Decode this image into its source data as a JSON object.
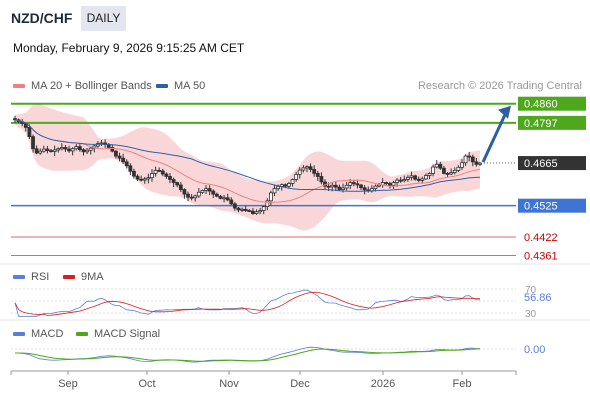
{
  "header": {
    "pair": "NZD/CHF",
    "timeframe": "DAILY",
    "timestamp": "Monday, February 9, 2026 9:15:25 AM CET"
  },
  "legend": {
    "ma20_label": "MA 20 + Bollinger Bands",
    "ma50_label": "MA 50",
    "credit": "Research © 2026 Trading Central",
    "rsi_label": "RSI",
    "rsi_ma_label": "9MA",
    "macd_label": "MACD",
    "macd_signal_label": "MACD Signal"
  },
  "colors": {
    "ma20": "#f08080",
    "ma50": "#2f5fa7",
    "bollinger_fill": "#f8cdd0",
    "candle": "#333333",
    "resistance": "#4ea81b",
    "support": "#3d74d6",
    "target": "#cc0000",
    "current": "#333333",
    "arrow": "#2c5ea8",
    "rsi": "#5b7fd6",
    "rsi_ma": "#d52020",
    "macd": "#5b7fd6",
    "macd_signal": "#4ea81b"
  },
  "chart_data": [
    {
      "type": "candlestick",
      "title": "NZD/CHF",
      "x_ticks": [
        "Sep",
        "Oct",
        "Nov",
        "Dec",
        "2026",
        "Feb"
      ],
      "ylim": [
        0.434,
        0.4882
      ],
      "levels": [
        {
          "name": "resistance_2",
          "value": 0.486,
          "label": "0.4860",
          "kind": "resistance"
        },
        {
          "name": "resistance_1",
          "value": 0.4797,
          "label": "0.4797",
          "kind": "resistance"
        },
        {
          "name": "current_price",
          "value": 0.4665,
          "label": "0.4665",
          "kind": "current"
        },
        {
          "name": "support_1",
          "value": 0.4525,
          "label": "0.4525",
          "kind": "support"
        },
        {
          "name": "target_1",
          "value": 0.4422,
          "label": "0.4422",
          "kind": "target"
        },
        {
          "name": "target_2",
          "value": 0.4361,
          "label": "0.4361",
          "kind": "target"
        }
      ],
      "closes": [
        0.4807,
        0.4801,
        0.4795,
        0.4782,
        0.4752,
        0.4712,
        0.4698,
        0.4704,
        0.4711,
        0.4706,
        0.4703,
        0.4708,
        0.4712,
        0.4716,
        0.4711,
        0.4705,
        0.4712,
        0.4719,
        0.4709,
        0.4702,
        0.4707,
        0.4714,
        0.4721,
        0.4729,
        0.4731,
        0.4726,
        0.4716,
        0.4704,
        0.4688,
        0.4681,
        0.4669,
        0.4656,
        0.4638,
        0.4622,
        0.4612,
        0.4609,
        0.4613,
        0.4617,
        0.4631,
        0.4641,
        0.4639,
        0.4629,
        0.4621,
        0.4611,
        0.4601,
        0.4593,
        0.4578,
        0.4563,
        0.4553,
        0.4551,
        0.4557,
        0.4569,
        0.4575,
        0.4581,
        0.4573,
        0.4563,
        0.4556,
        0.4549,
        0.4551,
        0.4544,
        0.4531,
        0.4517,
        0.4511,
        0.4513,
        0.4509,
        0.4507,
        0.4499,
        0.4505,
        0.4509,
        0.4522,
        0.4541,
        0.4567,
        0.4581,
        0.4588,
        0.4594,
        0.4589,
        0.4598,
        0.4611,
        0.4628,
        0.4642,
        0.4649,
        0.4653,
        0.4644,
        0.4631,
        0.4621,
        0.4603,
        0.4589,
        0.4587,
        0.4592,
        0.4586,
        0.4578,
        0.4583,
        0.4592,
        0.4601,
        0.4597,
        0.4593,
        0.4584,
        0.4577,
        0.4573,
        0.4581,
        0.4589,
        0.4593,
        0.4601,
        0.4598,
        0.4592,
        0.4601,
        0.4609,
        0.4607,
        0.4611,
        0.4618,
        0.4623,
        0.4612,
        0.4608,
        0.4613,
        0.4624,
        0.4631,
        0.4652,
        0.4661,
        0.4648,
        0.4631,
        0.4629,
        0.4634,
        0.4641,
        0.4651,
        0.4666,
        0.4688,
        0.4685,
        0.4669,
        0.4661,
        0.4665
      ],
      "series_ma20": "20-period moving average of closes",
      "series_ma50": "50-period moving average of closes",
      "forecast": {
        "from": 0.4665,
        "to": 0.486
      }
    },
    {
      "type": "line",
      "title": "RSI",
      "ylim": [
        30,
        70
      ],
      "ticks": [
        "70",
        "30"
      ],
      "current_label": "56.86",
      "current_value": 56.86
    },
    {
      "type": "line",
      "title": "MACD",
      "current_label": "0.00",
      "current_value": 0.0
    }
  ]
}
